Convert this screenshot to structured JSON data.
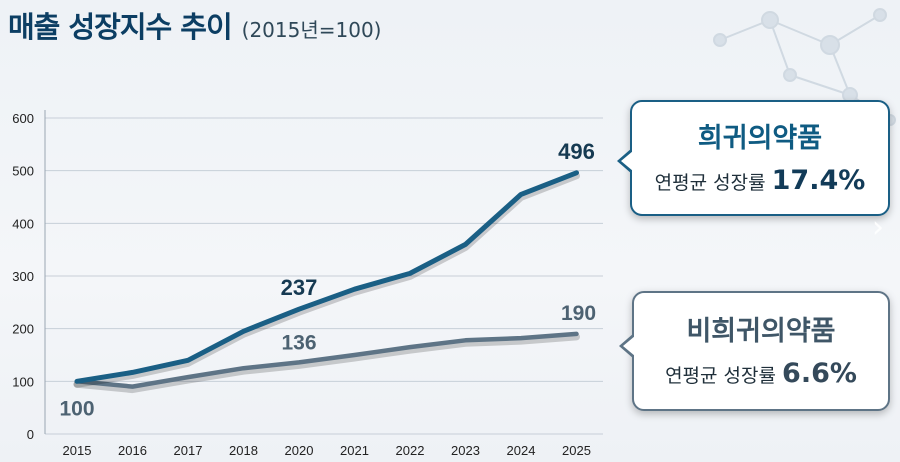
{
  "header": {
    "title": "매출 성장지수 추이",
    "subtitle": "(2015년=100)"
  },
  "chart_data": {
    "type": "line",
    "categories": [
      "2015",
      "2016",
      "2017",
      "2018",
      "2020",
      "2021",
      "2022",
      "2023",
      "2024",
      "2025"
    ],
    "series": [
      {
        "name": "희귀의약품",
        "color": "#1a5f85",
        "values": [
          100,
          117,
          140,
          195,
          237,
          275,
          305,
          360,
          455,
          496
        ]
      },
      {
        "name": "비희귀의약품",
        "color": "#5e7486",
        "values": [
          100,
          90,
          108,
          125,
          136,
          150,
          165,
          178,
          182,
          190
        ]
      }
    ],
    "yticks": [
      0,
      100,
      200,
      300,
      400,
      500,
      600
    ],
    "ylim": [
      0,
      600
    ],
    "grid": "horizontal",
    "data_labels": [
      {
        "series": 0,
        "index": 9,
        "text": "496"
      },
      {
        "series": 0,
        "index": 4,
        "text": "237"
      },
      {
        "series": 1,
        "index": 4,
        "text": "136"
      },
      {
        "series": 1,
        "index": 9,
        "text": "190"
      },
      {
        "series": 1,
        "index": 0,
        "text": "100"
      }
    ]
  },
  "callouts": {
    "rare": {
      "name": "희귀의약품",
      "rate_label": "연평균 성장률",
      "rate_value": "17.4%"
    },
    "nonrare": {
      "name": "비희귀의약품",
      "rate_label": "연평균 성장률",
      "rate_value": "6.6%"
    }
  }
}
